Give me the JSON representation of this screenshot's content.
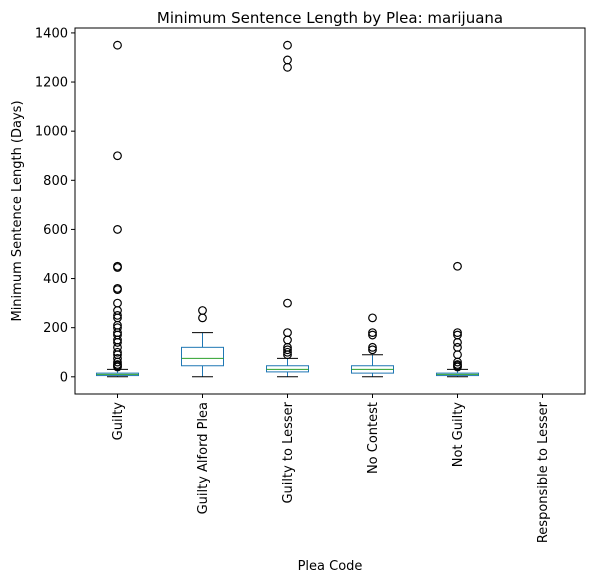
{
  "chart_data": {
    "type": "box",
    "title": "Minimum Sentence Length by Plea: marijuana",
    "xlabel": "Plea Code",
    "ylabel": "Minimum Sentence Length (Days)",
    "ylim": [
      -70,
      1420
    ],
    "yticks": [
      0,
      200,
      400,
      600,
      800,
      1000,
      1200,
      1400
    ],
    "grid": false,
    "colors": {
      "box": "#1f77b4",
      "median": "#2ca02c",
      "whisker": "#000000",
      "outlier": "#000000"
    },
    "categories": [
      "Guilty",
      "Guilty Alford Plea",
      "Guilty to Lesser",
      "No Contest",
      "Not Guilty",
      "Responsible to Lesser"
    ],
    "boxes": [
      {
        "whisker_low": 0,
        "q1": 5,
        "median": 10,
        "q3": 15,
        "whisker_high": 30,
        "outliers": [
          1350,
          900,
          600,
          450,
          445,
          360,
          355,
          300,
          270,
          250,
          240,
          210,
          200,
          180,
          170,
          150,
          140,
          120,
          100,
          90,
          75,
          60,
          50,
          45,
          40
        ]
      },
      {
        "whisker_low": 0,
        "q1": 45,
        "median": 75,
        "q3": 120,
        "whisker_high": 180,
        "outliers": [
          270,
          240
        ]
      },
      {
        "whisker_low": 0,
        "q1": 20,
        "median": 30,
        "q3": 45,
        "whisker_high": 75,
        "outliers": [
          1350,
          1290,
          1260,
          300,
          180,
          150,
          120,
          110,
          100,
          90
        ]
      },
      {
        "whisker_low": 0,
        "q1": 15,
        "median": 30,
        "q3": 45,
        "whisker_high": 90,
        "outliers": [
          240,
          180,
          170,
          120,
          110
        ]
      },
      {
        "whisker_low": 0,
        "q1": 5,
        "median": 10,
        "q3": 15,
        "whisker_high": 30,
        "outliers": [
          450,
          180,
          170,
          140,
          120,
          90,
          60,
          50,
          45,
          40
        ]
      },
      null
    ]
  }
}
